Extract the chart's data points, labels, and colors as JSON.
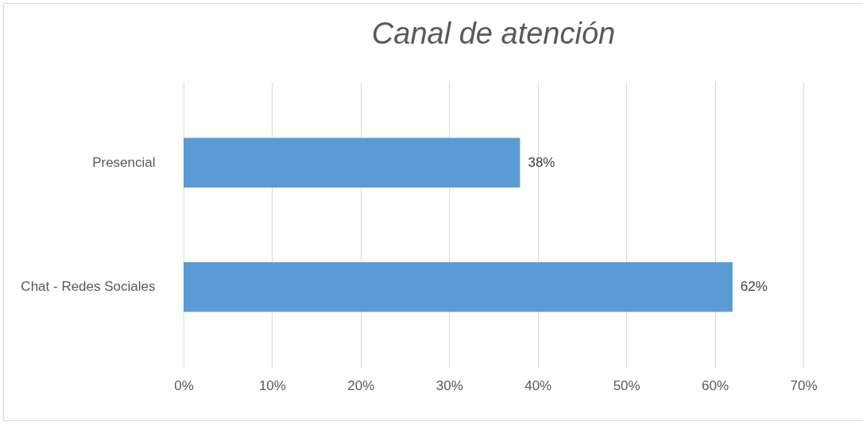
{
  "chart_data": {
    "type": "bar",
    "orientation": "horizontal",
    "title": "Canal de atención",
    "categories": [
      "Presencial",
      "Chat - Redes Sociales"
    ],
    "values": [
      38,
      62
    ],
    "color": "#5b9bd5",
    "value_labels": [
      "38%",
      "62%"
    ],
    "xlim": [
      0,
      70
    ],
    "xticks": [
      {
        "value": 0,
        "label": "0%"
      },
      {
        "value": 10,
        "label": "10%"
      },
      {
        "value": 20,
        "label": "20%"
      },
      {
        "value": 30,
        "label": "30%"
      },
      {
        "value": 40,
        "label": "40%"
      },
      {
        "value": 50,
        "label": "50%"
      },
      {
        "value": 60,
        "label": "60%"
      },
      {
        "value": 70,
        "label": "70%"
      }
    ],
    "grid": true
  }
}
